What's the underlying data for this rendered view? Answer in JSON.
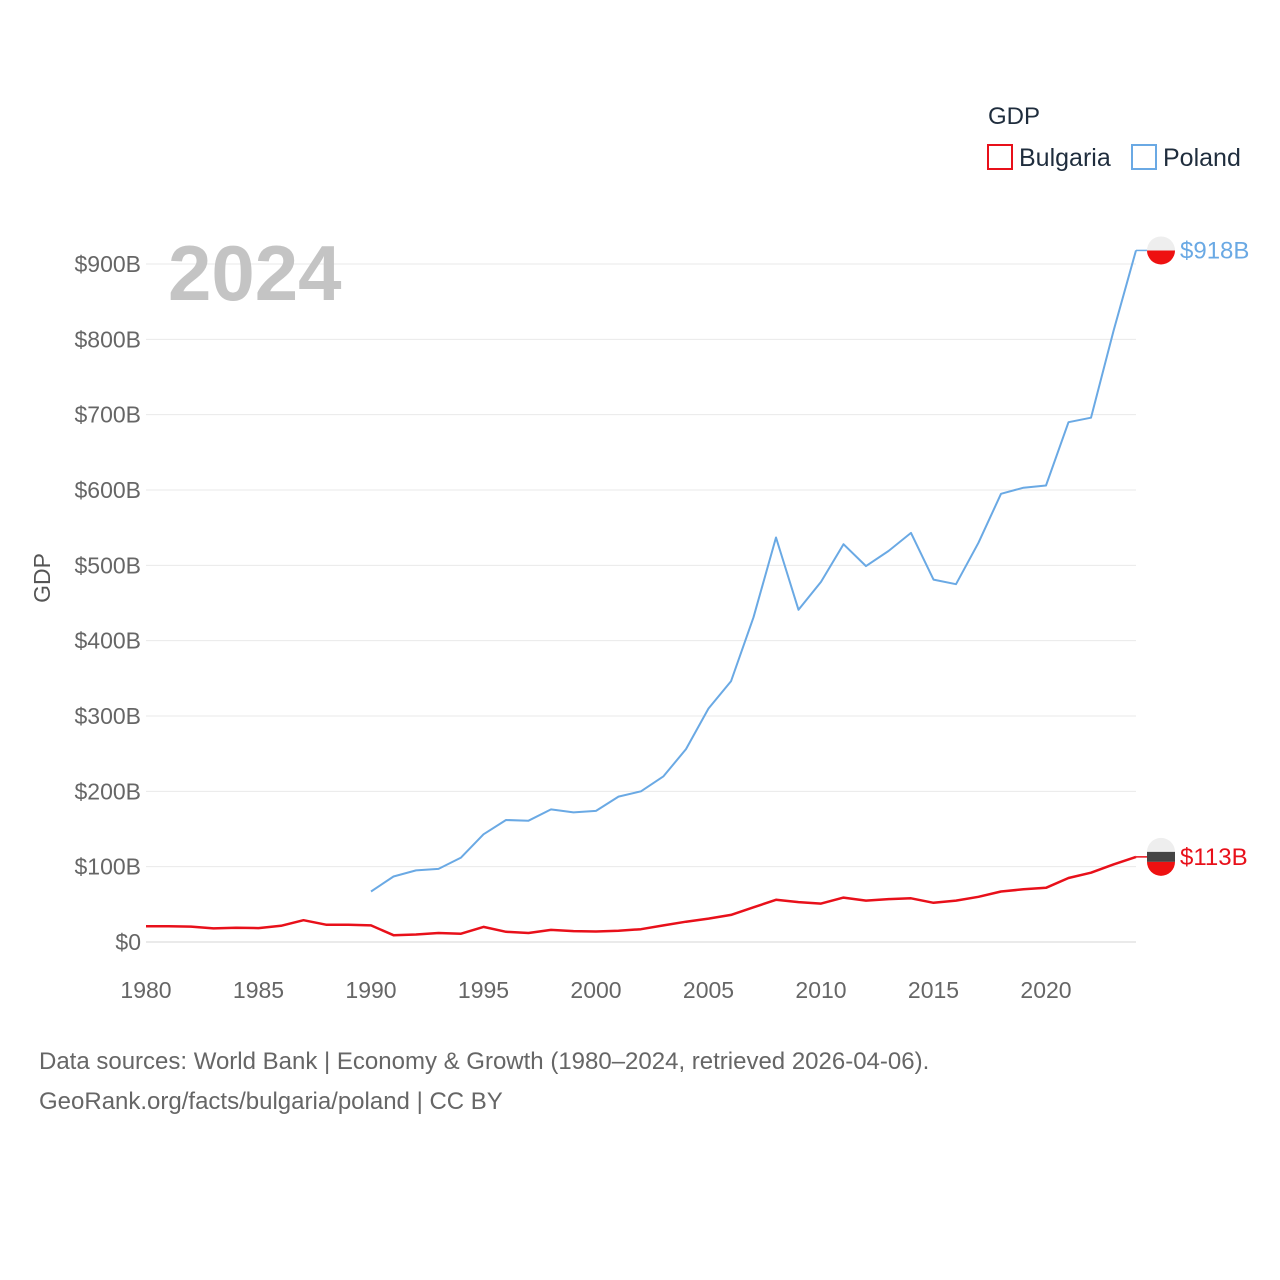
{
  "chart_data": {
    "type": "line",
    "title": "GDP",
    "ylabel": "GDP",
    "xlabel": "",
    "xlim": [
      1980,
      2024
    ],
    "ylim": [
      0,
      900
    ],
    "x_ticks": [
      "1980",
      "1985",
      "1990",
      "1995",
      "2000",
      "2005",
      "2010",
      "2015",
      "2020"
    ],
    "y_ticks": [
      "$0",
      "$100B",
      "$200B",
      "$300B",
      "$400B",
      "$500B",
      "$600B",
      "$700B",
      "$800B",
      "$900B"
    ],
    "current_year": "2024",
    "legend": {
      "title": "GDP",
      "position": "top-right"
    },
    "series": [
      {
        "name": "Bulgaria",
        "color": "#e8101a",
        "end_label": "$113B",
        "x": [
          1980,
          1981,
          1982,
          1983,
          1984,
          1985,
          1986,
          1987,
          1988,
          1989,
          1990,
          1991,
          1992,
          1993,
          1994,
          1995,
          1996,
          1997,
          1998,
          1999,
          2000,
          2001,
          2002,
          2003,
          2004,
          2005,
          2006,
          2007,
          2008,
          2009,
          2010,
          2011,
          2012,
          2013,
          2014,
          2015,
          2016,
          2017,
          2018,
          2019,
          2020,
          2021,
          2022,
          2023,
          2024
        ],
        "values": [
          21,
          21,
          20.5,
          18,
          19,
          18.5,
          21.5,
          29,
          23,
          23,
          22,
          9,
          10,
          12,
          11,
          20,
          13.5,
          12,
          16,
          14.5,
          14,
          15,
          17,
          22,
          27,
          31,
          36,
          46,
          56,
          53,
          51,
          59,
          55,
          57,
          58,
          52,
          55,
          60,
          67,
          70,
          72,
          85,
          92,
          103,
          113
        ]
      },
      {
        "name": "Poland",
        "color": "#6aa9e4",
        "end_label": "$918B",
        "x": [
          1990,
          1991,
          1992,
          1993,
          1994,
          1995,
          1996,
          1997,
          1998,
          1999,
          2000,
          2001,
          2002,
          2003,
          2004,
          2005,
          2006,
          2007,
          2008,
          2009,
          2010,
          2011,
          2012,
          2013,
          2014,
          2015,
          2016,
          2017,
          2018,
          2019,
          2020,
          2021,
          2022,
          2023,
          2024
        ],
        "values": [
          67,
          87,
          95,
          97,
          112,
          143,
          162,
          161,
          176,
          172,
          174,
          193,
          200,
          220,
          256,
          310,
          346,
          431,
          537,
          441,
          478,
          528,
          499,
          519,
          543,
          481,
          475,
          530,
          595,
          603,
          606,
          690,
          696,
          811,
          918
        ]
      }
    ]
  },
  "footer": {
    "line1": "Data sources: World Bank | Economy & Growth (1980–2024, retrieved 2026-04-06).",
    "line2": "GeoRank.org/facts/bulgaria/poland | CC BY"
  }
}
